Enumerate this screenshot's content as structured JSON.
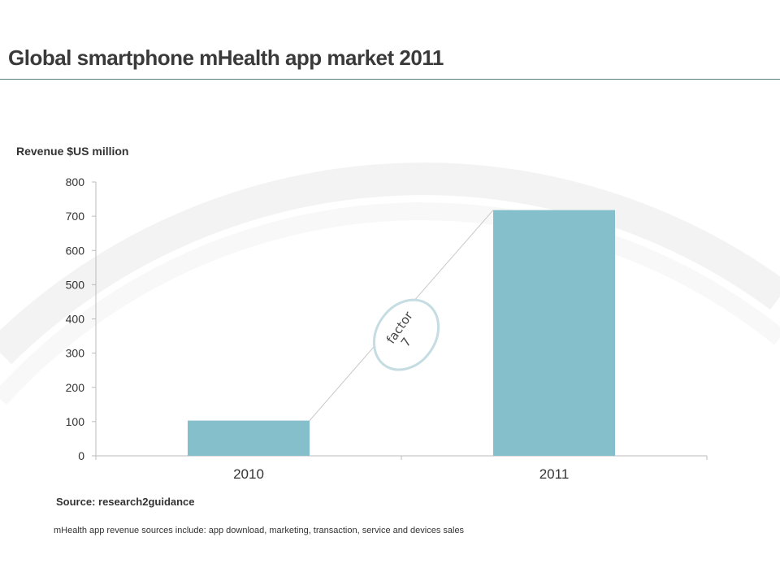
{
  "title": "Global smartphone mHealth app market 2011",
  "source": "Source: research2guidance",
  "note": "mHealth app revenue sources include: app download, marketing, transaction, service and devices sales",
  "chart_data": {
    "type": "bar",
    "ylabel": "Revenue $US million",
    "categories": [
      "2010",
      "2011"
    ],
    "values": [
      103,
      718
    ],
    "ylim": [
      0,
      800
    ],
    "yticks": [
      0,
      100,
      200,
      300,
      400,
      500,
      600,
      700,
      800
    ],
    "bar_color": "#86bfcc",
    "annotation": {
      "line1": "factor",
      "line2": "7"
    }
  }
}
